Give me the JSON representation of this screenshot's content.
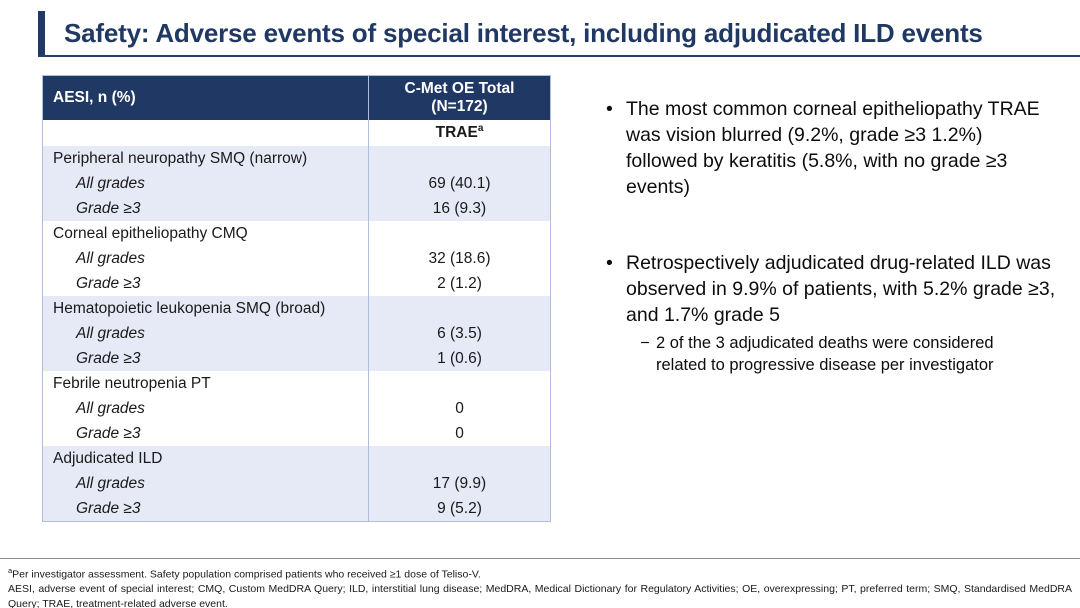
{
  "header": {
    "title": "Safety: Adverse events of special interest, including adjudicated ILD events"
  },
  "table": {
    "columns": {
      "aesi_header": "AESI, n (%)",
      "group_header_line1": "C-Met OE Total",
      "group_header_line2": "(N=172)",
      "subheader_text": "TRAE",
      "subheader_sup": "a"
    },
    "groups": [
      {
        "label": "Peripheral neuropathy SMQ (narrow)",
        "rows": [
          {
            "label": "All grades",
            "value": "69 (40.1)"
          },
          {
            "label": "Grade ≥3",
            "value": "16 (9.3)"
          }
        ]
      },
      {
        "label": "Corneal epitheliopathy CMQ",
        "rows": [
          {
            "label": "All grades",
            "value": "32 (18.6)"
          },
          {
            "label": "Grade ≥3",
            "value": "2 (1.2)"
          }
        ]
      },
      {
        "label": "Hematopoietic leukopenia SMQ (broad)",
        "rows": [
          {
            "label": "All grades",
            "value": "6 (3.5)"
          },
          {
            "label": "Grade ≥3",
            "value": "1 (0.6)"
          }
        ]
      },
      {
        "label": "Febrile neutropenia PT",
        "rows": [
          {
            "label": "All grades",
            "value": "0"
          },
          {
            "label": "Grade ≥3",
            "value": "0"
          }
        ]
      },
      {
        "label": "Adjudicated ILD",
        "rows": [
          {
            "label": "All grades",
            "value": "17 (9.9)"
          },
          {
            "label": "Grade ≥3",
            "value": "9 (5.2)"
          }
        ]
      }
    ]
  },
  "bullets": [
    {
      "text": "The most common corneal epitheliopathy TRAE was vision blurred (9.2%, grade ≥3 1.2%) followed by keratitis (5.8%, with no grade ≥3 events)"
    },
    {
      "text": "Retrospectively adjudicated drug-related ILD was observed in 9.9% of patients, with 5.2% grade ≥3, and 1.7% grade 5",
      "sub": "2 of the 3 adjudicated deaths were considered related to progressive disease per investigator"
    }
  ],
  "footnotes": {
    "note1_sup": "a",
    "note1_text": "Per investigator assessment. Safety population comprised patients who received ≥1 dose of Teliso-V.",
    "note2_text": "AESI, adverse event of special interest; CMQ, Custom MedDRA Query; ILD, interstitial lung disease; MedDRA, Medical Dictionary for Regulatory Activities; OE, overexpressing; PT, preferred term; SMQ, Standardised MedDRA Query; TRAE, treatment-related adverse event."
  },
  "colors": {
    "navy": "#1F3864",
    "row_shade": "#E6EAF6",
    "table_border": "#AFBEDC"
  }
}
